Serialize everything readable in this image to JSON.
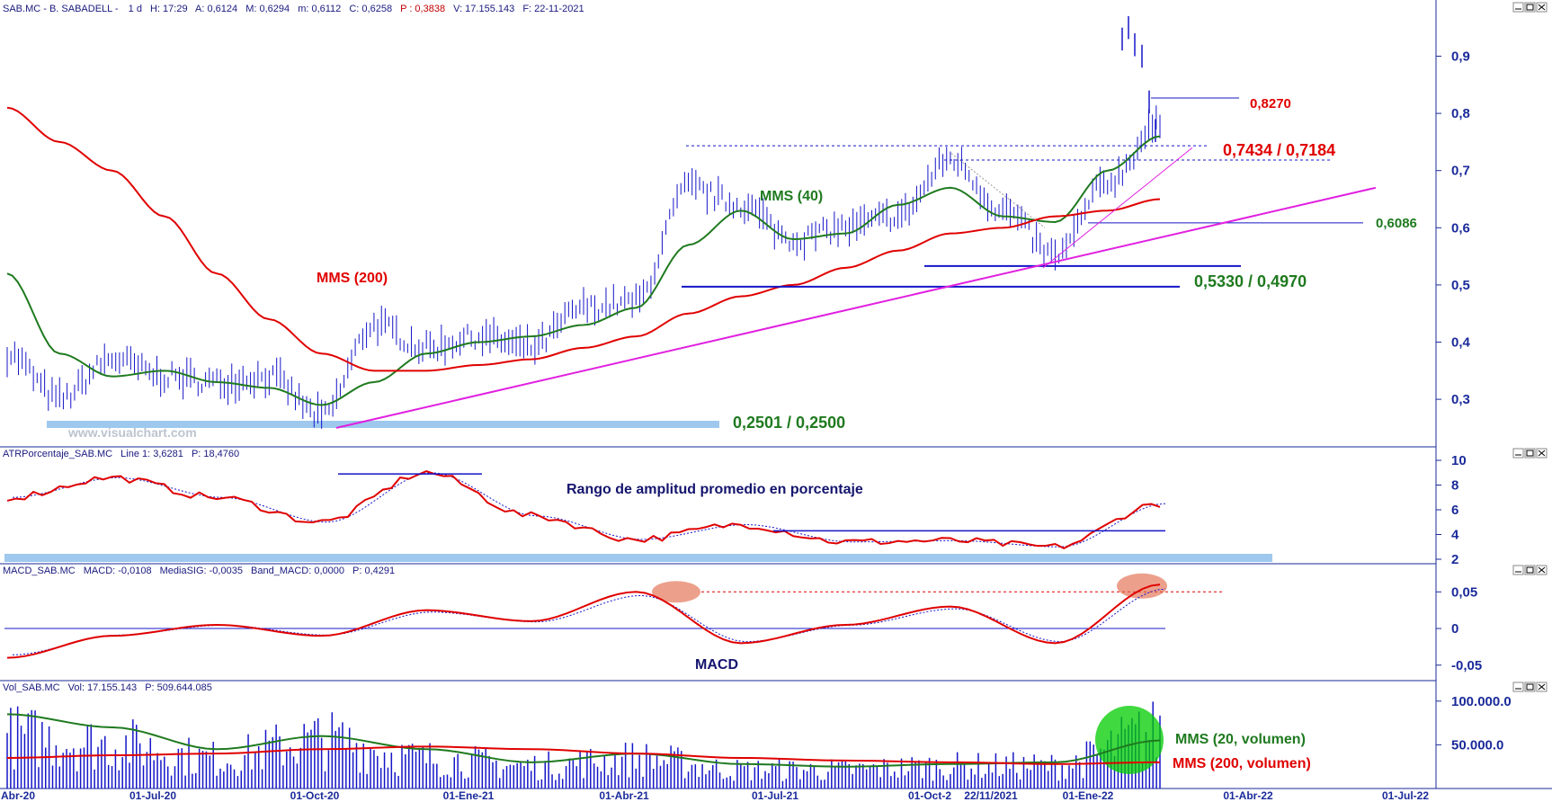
{
  "header": {
    "price": {
      "symbol_name": "SAB.MC - B. SABADELL -",
      "interval": "1 d",
      "hour": "H: 17:29",
      "open": "A: 0,6124",
      "max": "M: 0,6294",
      "min": "m: 0,6112",
      "close": "C: 0,6258",
      "p": "P : 0,3838",
      "volume": "V: 17.155.143",
      "date": "F: 22-11-2021"
    },
    "atr": {
      "name": "ATRPorcentaje_SAB.MC",
      "line": "Line 1: 3,6281",
      "p": "P: 18,4760"
    },
    "macd": {
      "name": "MACD_SAB.MC",
      "macd": "MACD: -0,0108",
      "signal": "MediaSIG: -0,0035",
      "band": "Band_MACD: 0,0000",
      "p": "P: 0,4291"
    },
    "vol": {
      "name": "Vol_SAB.MC",
      "vol": "Vol: 17.155.143",
      "p": "P: 509.644.085"
    }
  },
  "watermark": "www.visualchart.com",
  "annotations": {
    "mms200": "MMS (200)",
    "mms40": "MMS (40)",
    "r1": "0,8270",
    "r2": "0,7434 / 0,7184",
    "s1": "0,6086",
    "s2": "0,5330 / 0,4970",
    "s3": "0,2501 / 0,2500",
    "atr_title": "Rango de amplitud promedio en porcentaje",
    "macd_title": "MACD",
    "vol_mms20": "MMS (20, volumen)",
    "vol_mms200": "MMS (200, volumen)"
  },
  "x_axis": {
    "labels": [
      "Abr-20",
      "01-Jul-20",
      "01-Oct-20",
      "01-Ene-21",
      "01-Abr-21",
      "01-Jul-21",
      "01-Oct-2",
      "22/11/2021",
      "01-Ene-22",
      "01-Abr-22",
      "01-Jul-22"
    ]
  },
  "panel_buttons": [
    "minimize-button",
    "maximize-button",
    "close-button"
  ],
  "colors": {
    "price": "#1515c8",
    "mms200": "#e00000",
    "mms40": "#1f7a1f",
    "trendline": "#e020e0",
    "support": "#1515c8",
    "watermark_band": "#9ec8ee",
    "annotation_red": "#e00000",
    "annotation_green": "#1f7a1f",
    "annotation_navy": "#14146e"
  },
  "chart_data": [
    {
      "type": "line",
      "title": "SAB.MC - B. SABADELL - 1 d",
      "x": [
        "2020-04",
        "2020-05",
        "2020-06",
        "2020-07",
        "2020-08",
        "2020-09",
        "2020-10",
        "2020-11",
        "2020-12",
        "2021-01",
        "2021-02",
        "2021-03",
        "2021-04",
        "2021-05",
        "2021-06",
        "2021-07",
        "2021-08",
        "2021-09",
        "2021-10",
        "2021-11",
        "2021-12",
        "2022-01",
        "2022-02"
      ],
      "series": [
        {
          "values": [
            0.38,
            0.3,
            0.37,
            0.34,
            0.33,
            0.34,
            0.27,
            0.43,
            0.39,
            0.41,
            0.39,
            0.46,
            0.47,
            0.67,
            0.64,
            0.58,
            0.6,
            0.62,
            0.72,
            0.63,
            0.55,
            0.68,
            0.78
          ]
        },
        {
          "name": "MMS (40)",
          "values": [
            0.52,
            0.38,
            0.34,
            0.35,
            0.33,
            0.32,
            0.29,
            0.33,
            0.38,
            0.4,
            0.41,
            0.43,
            0.46,
            0.57,
            0.63,
            0.58,
            0.59,
            0.64,
            0.67,
            0.62,
            0.61,
            0.7,
            0.76
          ]
        },
        {
          "name": "MMS (200)",
          "values": [
            0.81,
            0.75,
            0.7,
            0.62,
            0.52,
            0.44,
            0.38,
            0.35,
            0.35,
            0.36,
            0.37,
            0.39,
            0.41,
            0.45,
            0.48,
            0.5,
            0.53,
            0.56,
            0.59,
            0.6,
            0.62,
            0.63,
            0.65
          ]
        }
      ],
      "levels": [
        0.827,
        0.7434,
        0.7184,
        0.6086,
        0.533,
        0.497,
        0.2501,
        0.25
      ],
      "yticks": [
        "0,3",
        "0,4",
        "0,5",
        "0,6",
        "0,7",
        "0,8",
        "0,9"
      ],
      "ylim": [
        0.22,
        0.97
      ],
      "grid": false
    },
    {
      "type": "line",
      "title": "Rango de amplitud promedio en porcentaje",
      "x": [
        "2020-04",
        "2020-06",
        "2020-08",
        "2020-10",
        "2020-12",
        "2021-02",
        "2021-04",
        "2021-06",
        "2021-08",
        "2021-10",
        "2021-12",
        "2022-02"
      ],
      "series": [
        {
          "values": [
            7.0,
            8.6,
            7.0,
            5.0,
            9.0,
            5.5,
            3.6,
            4.8,
            3.4,
            3.5,
            3.0,
            6.5
          ]
        }
      ],
      "yticks": [
        "2",
        "4",
        "6",
        "8",
        "10"
      ],
      "ylim": [
        2,
        10
      ]
    },
    {
      "type": "line",
      "title": "MACD",
      "x": [
        "2020-04",
        "2020-06",
        "2020-08",
        "2020-10",
        "2020-12",
        "2021-02",
        "2021-04",
        "2021-06",
        "2021-08",
        "2021-10",
        "2021-12",
        "2022-02"
      ],
      "series": [
        {
          "values": [
            -0.04,
            -0.01,
            0.005,
            -0.01,
            0.025,
            0.01,
            0.05,
            -0.02,
            0.005,
            0.03,
            -0.02,
            0.06
          ]
        }
      ],
      "yticks": [
        "-0,05",
        "0",
        "0,05"
      ],
      "ylim": [
        -0.065,
        0.07
      ]
    },
    {
      "type": "bar",
      "title": "Vol_SAB.MC",
      "x": [
        "2020-04",
        "2020-06",
        "2020-08",
        "2020-10",
        "2020-12",
        "2021-02",
        "2021-04",
        "2021-06",
        "2021-08",
        "2021-10",
        "2021-12",
        "2022-02"
      ],
      "series": [
        {
          "values": [
            70000000,
            60000000,
            40000000,
            65000000,
            40000000,
            30000000,
            40000000,
            25000000,
            25000000,
            30000000,
            30000000,
            75000000
          ]
        },
        {
          "name": "MMS (20, volumen)",
          "values": [
            85000000,
            70000000,
            45000000,
            60000000,
            45000000,
            30000000,
            40000000,
            28000000,
            25000000,
            28000000,
            30000000,
            55000000
          ]
        },
        {
          "name": "MMS (200, volumen)",
          "values": [
            35000000,
            38000000,
            40000000,
            45000000,
            48000000,
            45000000,
            40000000,
            35000000,
            32000000,
            30000000,
            28000000,
            30000000
          ]
        }
      ],
      "yticks": [
        "50.000.0",
        "100.000.0"
      ],
      "ylim": [
        0,
        108000000
      ]
    }
  ]
}
